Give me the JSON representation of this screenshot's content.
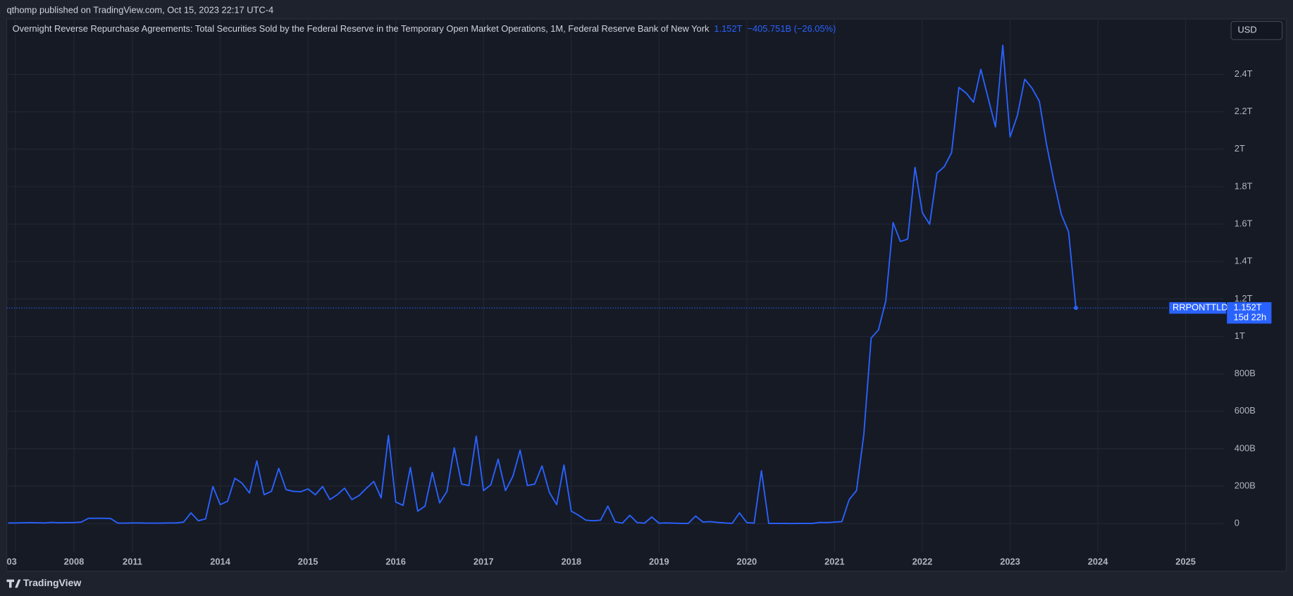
{
  "header": "qthomp published on TradingView.com, Oct 15, 2023 22:17 UTC-4",
  "footer": "TradingView",
  "currency": "USD",
  "chart_data": {
    "type": "line",
    "title": "Overnight Reverse Repurchase Agreements: Total Securities Sold by the Federal Reserve in the Temporary Open Market Operations, 1M, Federal Reserve Bank of New York",
    "legend_value": "1.152T",
    "legend_change": "−405.751B (−26.05%)",
    "price_label": "1.152T",
    "countdown": "15d 22h",
    "series": [
      {
        "name": "RRPONTTLD",
        "color": "#2962ff",
        "values": [
          3,
          3,
          4,
          5,
          4,
          3,
          6,
          4,
          5,
          5,
          8,
          28,
          28,
          28,
          27,
          2,
          2,
          3,
          3,
          2,
          2,
          2,
          3,
          3,
          8,
          57,
          15,
          25,
          198,
          101,
          119,
          242,
          215,
          163,
          335,
          154,
          172,
          295,
          181,
          172,
          170,
          185,
          154,
          198,
          128,
          154,
          189,
          128,
          150,
          189,
          225,
          137,
          471,
          115,
          97,
          300,
          66,
          93,
          273,
          110,
          172,
          405,
          211,
          203,
          467,
          176,
          207,
          344,
          176,
          251,
          392,
          203,
          211,
          308,
          167,
          101,
          313,
          66,
          44,
          18,
          15,
          18,
          93,
          9,
          2,
          44,
          5,
          2,
          35,
          2,
          3,
          2,
          1,
          1,
          40,
          8,
          10,
          6,
          3,
          1,
          57,
          5,
          2,
          282,
          1,
          1,
          1,
          0,
          1,
          1,
          1,
          6,
          5,
          8,
          10,
          128,
          176,
          476,
          991,
          1035,
          1189,
          1608,
          1507,
          1520,
          1903,
          1661,
          1599,
          1872,
          1907,
          1982,
          2330,
          2300,
          2251,
          2427,
          2273,
          2119,
          2555,
          2066,
          2181,
          2374,
          2326,
          2256,
          2022,
          1828,
          1652,
          1558,
          1152
        ]
      }
    ],
    "xlim": [
      -0.2,
      166.2
    ],
    "xticks": [
      {
        "value": 1,
        "label": "03"
      },
      {
        "value": 9,
        "label": "2008"
      },
      {
        "value": 17,
        "label": "2011"
      },
      {
        "value": 29,
        "label": "2014"
      },
      {
        "value": 41,
        "label": "2015"
      },
      {
        "value": 53,
        "label": "2016"
      },
      {
        "value": 65,
        "label": "2017"
      },
      {
        "value": 77,
        "label": "2018"
      },
      {
        "value": 89,
        "label": "2019"
      },
      {
        "value": 101,
        "label": "2020"
      },
      {
        "value": 113,
        "label": "2021"
      },
      {
        "value": 125,
        "label": "2022"
      },
      {
        "value": 137,
        "label": "2023"
      },
      {
        "value": 149,
        "label": "2024"
      },
      {
        "value": 161,
        "label": "2025"
      }
    ],
    "ylim": [
      -255,
      2696
    ],
    "yticks": [
      0,
      {
        "value": 200,
        "label": "200B"
      },
      {
        "value": 400,
        "label": "400B"
      },
      {
        "value": 600,
        "label": "600B"
      },
      {
        "value": 800,
        "label": "800B"
      },
      {
        "value": 1000,
        "label": "1T"
      },
      {
        "value": 1200,
        "label": "1.2T"
      },
      {
        "value": 1400,
        "label": "1.4T"
      },
      {
        "value": 1600,
        "label": "1.6T"
      },
      {
        "value": 1800,
        "label": "1.8T"
      },
      {
        "value": 2000,
        "label": "2T"
      },
      {
        "value": 2200,
        "label": "2.2T"
      },
      {
        "value": 2400,
        "label": "2.4T"
      }
    ],
    "grid": true
  }
}
